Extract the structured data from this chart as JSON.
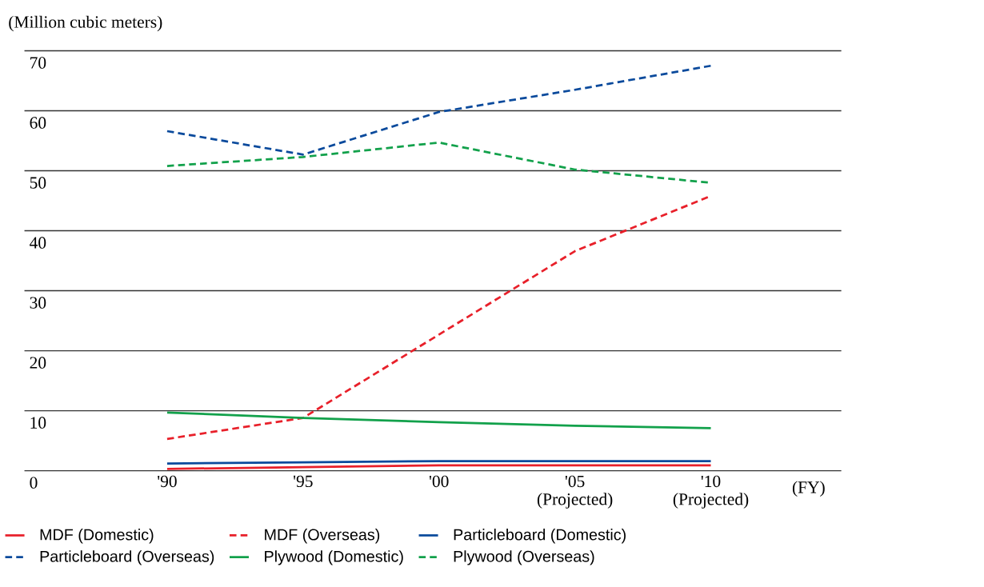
{
  "chart_data": {
    "type": "line",
    "ylabel": "(Million cubic meters)",
    "xlabel": "(FY)",
    "categories": [
      "'90",
      "'95",
      "'00",
      "'05 (Projected)",
      "'10 (Projected)"
    ],
    "series": [
      {
        "name": "MDF (Domestic)",
        "color": "#e8202a",
        "line_style": "solid",
        "values": [
          0.3,
          0.6,
          0.9,
          0.9,
          0.9
        ]
      },
      {
        "name": "MDF (Overseas)",
        "color": "#e8202a",
        "line_style": "dashed",
        "values": [
          5.3,
          8.8,
          22.7,
          36.6,
          45.8
        ]
      },
      {
        "name": "Particleboard (Domestic)",
        "color": "#0a4a9c",
        "line_style": "solid",
        "values": [
          1.2,
          1.4,
          1.6,
          1.6,
          1.6
        ]
      },
      {
        "name": "Particleboard  (Overseas)",
        "color": "#0a4a9c",
        "line_style": "dashed",
        "values": [
          56.6,
          52.7,
          59.8,
          63.5,
          67.5
        ]
      },
      {
        "name": "Plywood (Domestic)",
        "color": "#12a14b",
        "line_style": "solid",
        "values": [
          9.7,
          8.8,
          8.1,
          7.5,
          7.1
        ]
      },
      {
        "name": "Plywood (Overseas)",
        "color": "#12a14b",
        "line_style": "dashed",
        "values": [
          50.8,
          52.3,
          54.7,
          50.2,
          48.0
        ]
      }
    ],
    "ylim": [
      0,
      70
    ],
    "yticks": [
      0,
      10,
      20,
      30,
      40,
      50,
      60,
      70
    ],
    "grid": "y",
    "legend": "bottom",
    "marker": "none"
  }
}
